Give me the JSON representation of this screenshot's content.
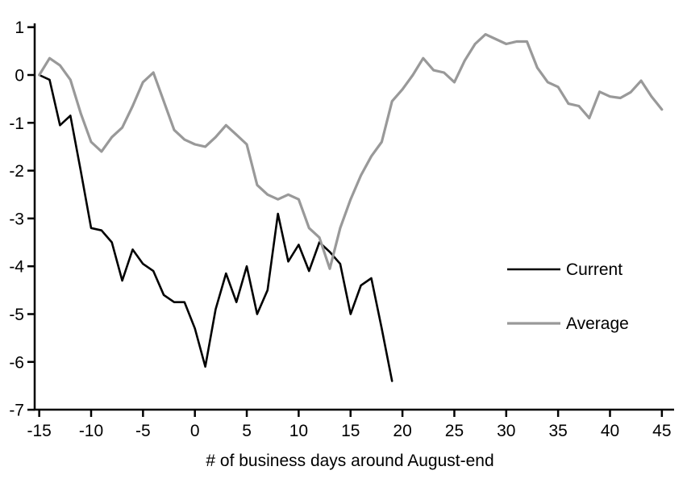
{
  "chart_data": {
    "type": "line",
    "title": "",
    "xlabel": "# of business days around August-end",
    "ylabel": "",
    "xlim": [
      -15,
      45
    ],
    "ylim": [
      -7,
      1
    ],
    "x_ticks": [
      -15,
      -10,
      -5,
      0,
      5,
      10,
      15,
      20,
      25,
      30,
      35,
      40,
      45
    ],
    "y_ticks": [
      1,
      0,
      -1,
      -2,
      -3,
      -4,
      -5,
      -6,
      -7
    ],
    "grid": false,
    "legend_position": "right-middle",
    "axis_color": "#000000",
    "series": [
      {
        "name": "Current",
        "color": "#000000",
        "x": [
          -15,
          -14,
          -13,
          -12,
          -11,
          -10,
          -9,
          -8,
          -7,
          -6,
          -5,
          -4,
          -3,
          -2,
          -1,
          0,
          1,
          2,
          3,
          4,
          5,
          6,
          7,
          8,
          9,
          10,
          11,
          12,
          13,
          14,
          15,
          16,
          17,
          18,
          19
        ],
        "values": [
          0,
          -0.1,
          -1.05,
          -0.85,
          -2.0,
          -3.2,
          -3.25,
          -3.5,
          -4.3,
          -3.65,
          -3.95,
          -4.1,
          -4.6,
          -4.75,
          -4.75,
          -5.3,
          -6.1,
          -4.9,
          -4.15,
          -4.75,
          -4.0,
          -5.0,
          -4.5,
          -2.9,
          -3.9,
          -3.55,
          -4.1,
          -3.5,
          -3.7,
          -3.95,
          -5.0,
          -4.4,
          -4.25,
          -5.3,
          -6.4
        ]
      },
      {
        "name": "Average",
        "color": "#999999",
        "x": [
          -15,
          -14,
          -13,
          -12,
          -11,
          -10,
          -9,
          -8,
          -7,
          -6,
          -5,
          -4,
          -3,
          -2,
          -1,
          0,
          1,
          2,
          3,
          4,
          5,
          6,
          7,
          8,
          9,
          10,
          11,
          12,
          13,
          14,
          15,
          16,
          17,
          18,
          19,
          20,
          21,
          22,
          23,
          24,
          25,
          26,
          27,
          28,
          29,
          30,
          31,
          32,
          33,
          34,
          35,
          36,
          37,
          38,
          39,
          40,
          41,
          42,
          43,
          44,
          45
        ],
        "values": [
          0,
          0.35,
          0.2,
          -0.1,
          -0.8,
          -1.4,
          -1.6,
          -1.3,
          -1.1,
          -0.65,
          -0.15,
          0.05,
          -0.55,
          -1.15,
          -1.35,
          -1.45,
          -1.5,
          -1.3,
          -1.05,
          -1.25,
          -1.45,
          -2.3,
          -2.5,
          -2.6,
          -2.5,
          -2.6,
          -3.2,
          -3.4,
          -4.05,
          -3.2,
          -2.6,
          -2.1,
          -1.7,
          -1.4,
          -0.55,
          -0.3,
          0.0,
          0.35,
          0.1,
          0.05,
          -0.15,
          0.3,
          0.65,
          0.85,
          0.75,
          0.65,
          0.7,
          0.7,
          0.15,
          -0.15,
          -0.25,
          -0.6,
          -0.65,
          -0.9,
          -0.35,
          -0.45,
          -0.48,
          -0.36,
          -0.12,
          -0.45,
          -0.72
        ]
      }
    ]
  }
}
